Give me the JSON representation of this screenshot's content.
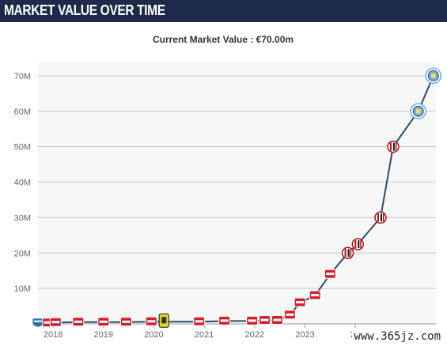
{
  "header": {
    "title": "MARKET VALUE OVER TIME"
  },
  "watermark": "www.365jz.com",
  "chart_data": {
    "type": "line",
    "title": "Current Market Value : €70.00m",
    "xlabel": "",
    "ylabel": "",
    "x_ticks": [
      "2018",
      "2019",
      "2020",
      "2021",
      "2022",
      "2023",
      "20"
    ],
    "y_ticks": [
      "10M",
      "20M",
      "30M",
      "40M",
      "50M",
      "60M",
      "70M"
    ],
    "xlim": [
      2017.7,
      2025.6
    ],
    "ylim": [
      0,
      74
    ],
    "grid": true,
    "colors": {
      "line": "#2e4a6b",
      "grid": "#c8c8c8",
      "plot_bg": "#f7f7f7",
      "az_red": "#cf2030",
      "milan_red": "#a6121b",
      "city_blue": "#6cabdd",
      "club_yellow": "#f2d024"
    },
    "series": [
      {
        "values": [
          {
            "x": 2017.7,
            "y": 0.3,
            "club": "pec-zwolle"
          },
          {
            "x": 2017.9,
            "y": 0.3,
            "club": "az"
          },
          {
            "x": 2018.05,
            "y": 0.4,
            "club": "az"
          },
          {
            "x": 2018.5,
            "y": 0.5,
            "club": "az"
          },
          {
            "x": 2019.0,
            "y": 0.5,
            "club": "az"
          },
          {
            "x": 2019.45,
            "y": 0.5,
            "club": "az"
          },
          {
            "x": 2019.95,
            "y": 0.6,
            "club": "az"
          },
          {
            "x": 2020.2,
            "y": 0.6,
            "club": "excelsior"
          },
          {
            "x": 2020.9,
            "y": 0.6,
            "club": "az"
          },
          {
            "x": 2021.4,
            "y": 0.8,
            "club": "az"
          },
          {
            "x": 2021.95,
            "y": 0.8,
            "club": "az"
          },
          {
            "x": 2022.2,
            "y": 1.0,
            "club": "az"
          },
          {
            "x": 2022.45,
            "y": 1.0,
            "club": "az"
          },
          {
            "x": 2022.7,
            "y": 2.5,
            "club": "az"
          },
          {
            "x": 2022.9,
            "y": 6.0,
            "club": "az"
          },
          {
            "x": 2023.2,
            "y": 8.0,
            "club": "az"
          },
          {
            "x": 2023.5,
            "y": 14.0,
            "club": "az"
          },
          {
            "x": 2023.85,
            "y": 20.0,
            "club": "milan"
          },
          {
            "x": 2024.05,
            "y": 22.5,
            "club": "milan"
          },
          {
            "x": 2024.5,
            "y": 30.0,
            "club": "milan"
          },
          {
            "x": 2024.75,
            "y": 50.0,
            "club": "milan"
          },
          {
            "x": 2025.25,
            "y": 60.0,
            "club": "man-city"
          },
          {
            "x": 2025.55,
            "y": 70.0,
            "club": "man-city"
          }
        ]
      }
    ]
  }
}
